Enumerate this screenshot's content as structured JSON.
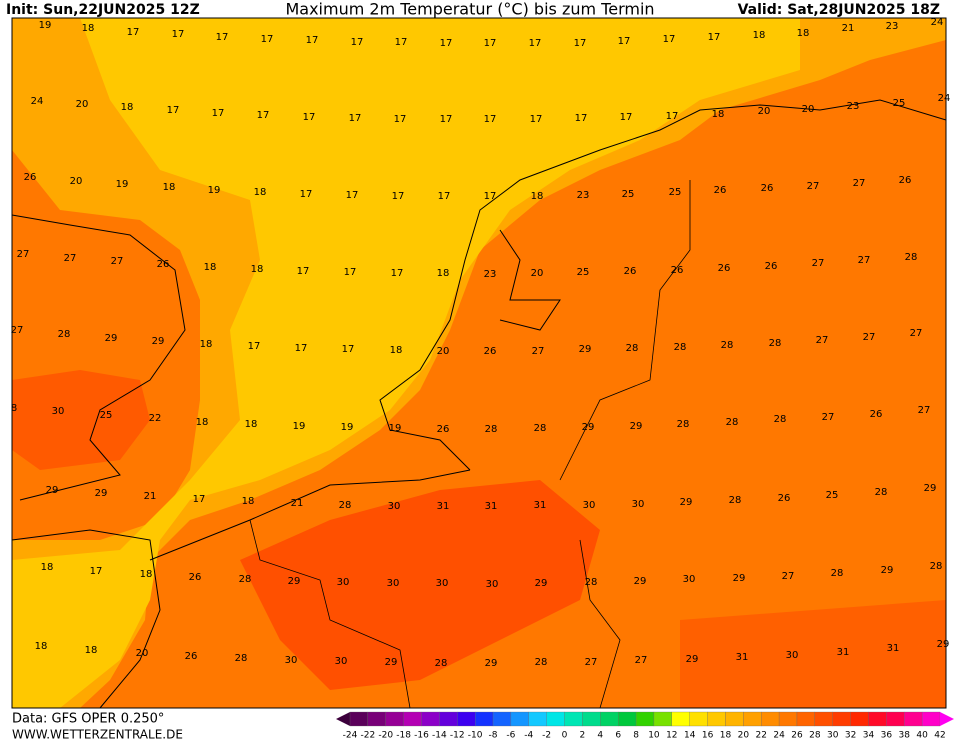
{
  "header": {
    "init": "Init: Sun,22JUN2025 12Z",
    "title": "Maximum 2m Temperatur (°C) bis zum Termin",
    "valid": "Valid: Sat,28JUN2025 18Z"
  },
  "map": {
    "rows": [
      [
        19,
        18,
        17,
        17,
        17,
        17,
        17,
        17,
        17,
        17,
        17,
        17,
        17,
        17,
        17,
        17,
        18,
        18,
        21,
        23,
        24
      ],
      [
        24,
        20,
        18,
        17,
        17,
        17,
        17,
        17,
        17,
        17,
        17,
        17,
        17,
        17,
        17,
        18,
        20,
        20,
        23,
        25,
        24
      ],
      [
        26,
        20,
        19,
        18,
        19,
        18,
        17,
        17,
        17,
        17,
        17,
        18,
        23,
        25,
        25,
        26,
        26,
        27,
        27,
        26
      ],
      [
        27,
        27,
        27,
        26,
        18,
        18,
        17,
        17,
        17,
        18,
        23,
        20,
        25,
        26,
        26,
        26,
        26,
        27,
        27,
        28
      ],
      [
        27,
        28,
        29,
        29,
        18,
        17,
        17,
        17,
        18,
        20,
        26,
        27,
        29,
        28,
        28,
        28,
        28,
        27,
        27,
        27
      ],
      [
        8,
        30,
        25,
        22,
        18,
        18,
        19,
        19,
        19,
        26,
        28,
        28,
        29,
        29,
        28,
        28,
        28,
        27,
        26,
        27
      ],
      [
        29,
        29,
        21,
        17,
        18,
        21,
        28,
        30,
        31,
        31,
        31,
        30,
        30,
        29,
        28,
        26,
        25,
        28,
        29
      ],
      [
        18,
        17,
        18,
        26,
        28,
        29,
        30,
        30,
        30,
        30,
        29,
        28,
        29,
        30,
        29,
        27,
        28,
        29,
        28
      ],
      [
        18,
        18,
        20,
        26,
        28,
        30,
        30,
        29,
        28,
        29,
        28,
        27,
        27,
        29,
        31,
        30,
        31,
        31,
        29
      ]
    ]
  },
  "footer": {
    "data": "Data: GFS OPER 0.250°",
    "site": "WWW.WETTERZENTRALE.DE"
  },
  "color_scale": {
    "labels": [
      -24,
      -22,
      -20,
      -18,
      -16,
      -14,
      -12,
      -10,
      -8,
      -6,
      -4,
      -2,
      0,
      2,
      4,
      6,
      8,
      10,
      12,
      14,
      16,
      18,
      20,
      22,
      24,
      26,
      28,
      30,
      32,
      34,
      36,
      38,
      40,
      42
    ]
  }
}
